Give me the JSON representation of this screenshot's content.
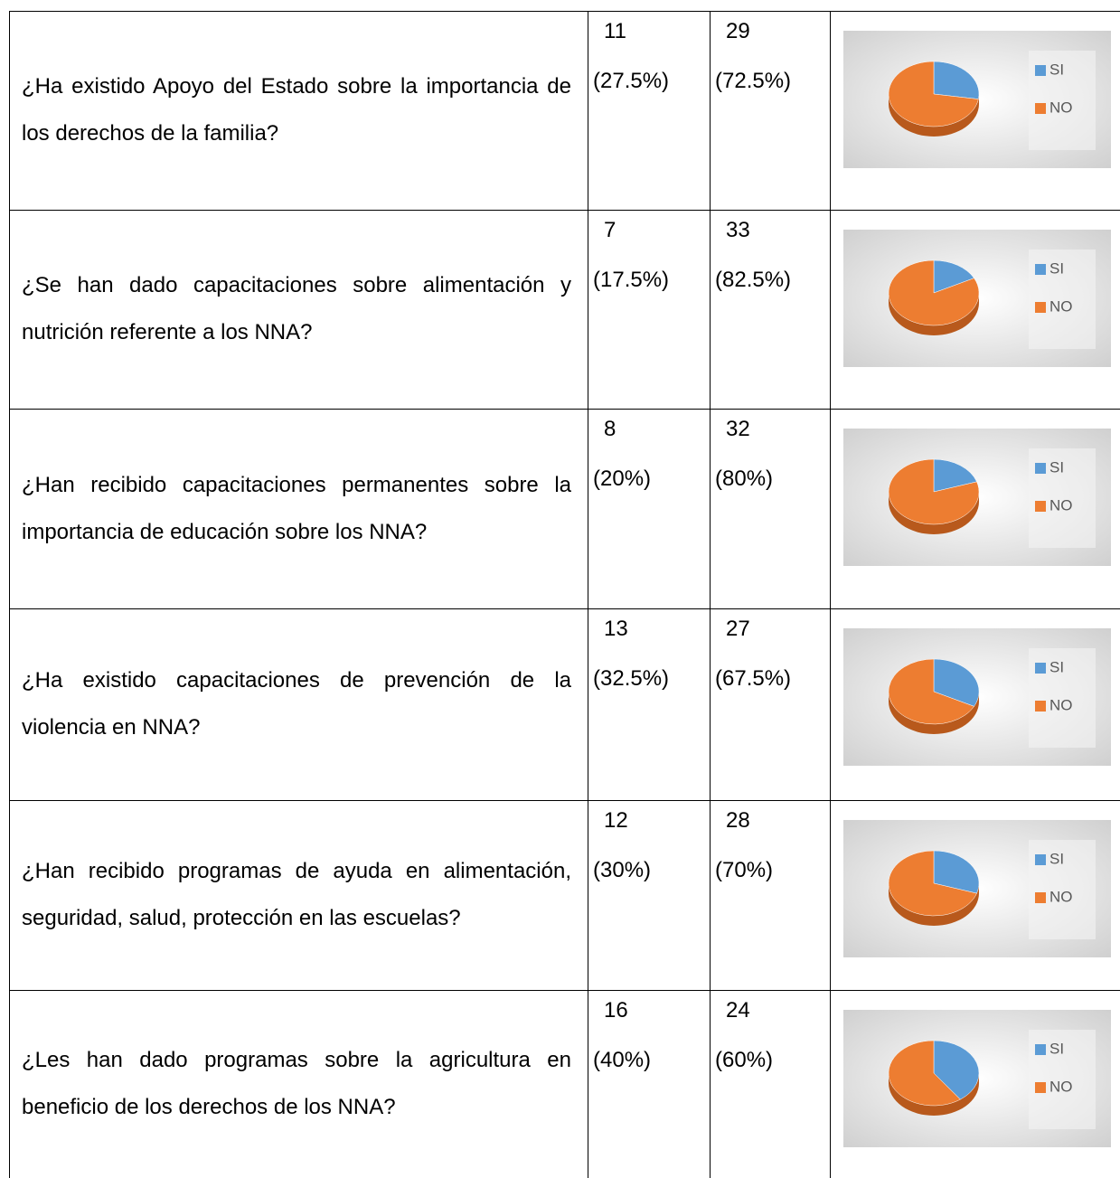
{
  "legend": [
    {
      "name": "SI",
      "color": "#5b9bd5"
    },
    {
      "name": "NO",
      "color": "#ed7d31"
    }
  ],
  "table": {
    "rows": [
      {
        "question": "¿Ha existido Apoyo del Estado sobre la importancia de los derechos de la familia?",
        "si": {
          "count": 11,
          "percent": 27.5,
          "percent_label": "(27.5%)"
        },
        "no": {
          "count": 29,
          "percent": 72.5,
          "percent_label": "(72.5%)"
        }
      },
      {
        "question": "¿Se han dado capacitaciones sobre alimentación y nutrición referente a los NNA?",
        "si": {
          "count": 7,
          "percent": 17.5,
          "percent_label": "(17.5%)"
        },
        "no": {
          "count": 33,
          "percent": 82.5,
          "percent_label": "(82.5%)"
        }
      },
      {
        "question": "¿Han recibido capacitaciones permanentes sobre la importancia de educación sobre los NNA?",
        "si": {
          "count": 8,
          "percent": 20,
          "percent_label": "(20%)"
        },
        "no": {
          "count": 32,
          "percent": 80,
          "percent_label": "(80%)"
        }
      },
      {
        "question": "¿Ha existido capacitaciones de prevención de la violencia en NNA?",
        "si": {
          "count": 13,
          "percent": 32.5,
          "percent_label": "(32.5%)"
        },
        "no": {
          "count": 27,
          "percent": 67.5,
          "percent_label": "(67.5%)"
        }
      },
      {
        "question": "¿Han recibido programas de ayuda en alimentación, seguridad, salud, protección en las escuelas?",
        "si": {
          "count": 12,
          "percent": 30,
          "percent_label": "(30%)"
        },
        "no": {
          "count": 28,
          "percent": 70,
          "percent_label": "(70%)"
        }
      },
      {
        "question": "¿Les han dado programas sobre la agricultura en beneficio de los derechos de los NNA?",
        "si": {
          "count": 16,
          "percent": 40,
          "percent_label": "(40%)"
        },
        "no": {
          "count": 24,
          "percent": 60,
          "percent_label": "(60%)"
        }
      }
    ]
  }
}
